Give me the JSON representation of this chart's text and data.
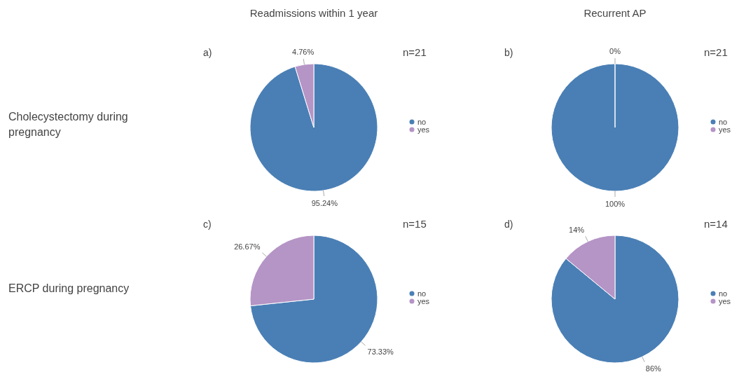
{
  "chart_data": [
    {
      "type": "pie",
      "title": "Readmissions within 1 year",
      "ylabel": "Cholecystectomy during pregnancy",
      "annotations": [
        "a)",
        "n=21"
      ],
      "categories": [
        "no",
        "yes"
      ],
      "values": [
        95.24,
        4.76
      ],
      "colors": [
        "#4a7fb5",
        "#b594c6"
      ],
      "value_labels": [
        "95.24%",
        "4.76%"
      ],
      "legend": "right"
    },
    {
      "type": "pie",
      "title": "Recurrent AP",
      "annotations": [
        "b)",
        "n=21"
      ],
      "categories": [
        "no",
        "yes"
      ],
      "values": [
        100,
        0
      ],
      "colors": [
        "#4a7fb5",
        "#b594c6"
      ],
      "value_labels": [
        "100%",
        "0%"
      ],
      "legend": "right"
    },
    {
      "type": "pie",
      "ylabel": "ERCP during pregnancy",
      "annotations": [
        "c)",
        "n=15"
      ],
      "categories": [
        "no",
        "yes"
      ],
      "values": [
        73.33,
        26.67
      ],
      "colors": [
        "#4a7fb5",
        "#b594c6"
      ],
      "value_labels": [
        "73.33%",
        "26.67%"
      ],
      "legend": "right"
    },
    {
      "type": "pie",
      "annotations": [
        "d)",
        "n=14"
      ],
      "categories": [
        "no",
        "yes"
      ],
      "values": [
        86,
        14
      ],
      "colors": [
        "#4a7fb5",
        "#b594c6"
      ],
      "value_labels": [
        "86%",
        "14%"
      ],
      "legend": "right"
    }
  ]
}
